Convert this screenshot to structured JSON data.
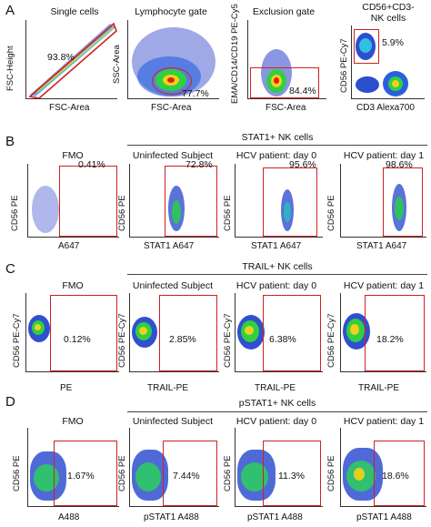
{
  "row_a": {
    "letter": "A",
    "plots": [
      {
        "title": "Single cells",
        "xlabel": "FSC-Area",
        "ylabel": "FSC-Height",
        "pct": "93.8%"
      },
      {
        "title": "Lymphocyte gate",
        "xlabel": "FSC-Area",
        "ylabel": "SSC-Area",
        "pct": "77.7%"
      },
      {
        "title": "Exclusion gate",
        "xlabel": "FSC-Area",
        "ylabel": "EMA/CD14/CD19 PE-Cy5",
        "pct": "84.4%"
      },
      {
        "title_line1": "CD56+CD3-",
        "title_line2": "NK cells",
        "xlabel": "CD3 Alexa700",
        "ylabel": "CD56 PE-Cy7",
        "pct": "5.9%"
      }
    ]
  },
  "row_b": {
    "letter": "B",
    "header": "STAT1+ NK cells",
    "plots": [
      {
        "title": "FMO",
        "xlabel": "A647",
        "ylabel": "CD56 PE",
        "pct": "0.41%"
      },
      {
        "title": "Uninfected Subject",
        "xlabel": "STAT1 A647",
        "ylabel": "CD56 PE",
        "pct": "72.8%"
      },
      {
        "title": "HCV patient: day 0",
        "xlabel": "STAT1 A647",
        "ylabel": "CD56 PE",
        "pct": "95.6%"
      },
      {
        "title": "HCV patient: day 1",
        "xlabel": "STAT1 A647",
        "ylabel": "CD56 PE",
        "pct": "98.6%"
      }
    ]
  },
  "row_c": {
    "letter": "C",
    "header": "TRAIL+ NK cells",
    "plots": [
      {
        "title": "FMO",
        "xlabel": "PE",
        "ylabel": "CD56 PE-Cy7",
        "pct": "0.12%"
      },
      {
        "title": "Uninfected Subject",
        "xlabel": "TRAIL-PE",
        "ylabel": "CD56 PE-Cy7",
        "pct": "2.85%"
      },
      {
        "title": "HCV patient: day 0",
        "xlabel": "TRAIL-PE",
        "ylabel": "CD56 PE-Cy7",
        "pct": "6.38%"
      },
      {
        "title": "HCV patient: day 1",
        "xlabel": "TRAIL-PE",
        "ylabel": "CD56 PE-Cy7",
        "pct": "18.2%"
      }
    ]
  },
  "row_d": {
    "letter": "D",
    "header": "pSTAT1+ NK cells",
    "plots": [
      {
        "title": "FMO",
        "xlabel": "A488",
        "ylabel": "CD56 PE",
        "pct": "1.67%"
      },
      {
        "title": "Uninfected Subject",
        "xlabel": "pSTAT1 A488",
        "ylabel": "CD56 PE",
        "pct": "7.44%"
      },
      {
        "title": "HCV patient: day 0",
        "xlabel": "pSTAT1 A488",
        "ylabel": "CD56 PE",
        "pct": "11.3%"
      },
      {
        "title": "HCV patient: day 1",
        "xlabel": "pSTAT1 A488",
        "ylabel": "CD56 PE",
        "pct": "18.6%"
      }
    ]
  },
  "axis_ticks": {
    "fsc": [
      "0",
      "50K",
      "100K",
      "150K",
      "200K",
      "250K"
    ]
  },
  "colors": {
    "gate": "#d02020",
    "density_low": "#2030c0",
    "density_high": "#e02010"
  }
}
